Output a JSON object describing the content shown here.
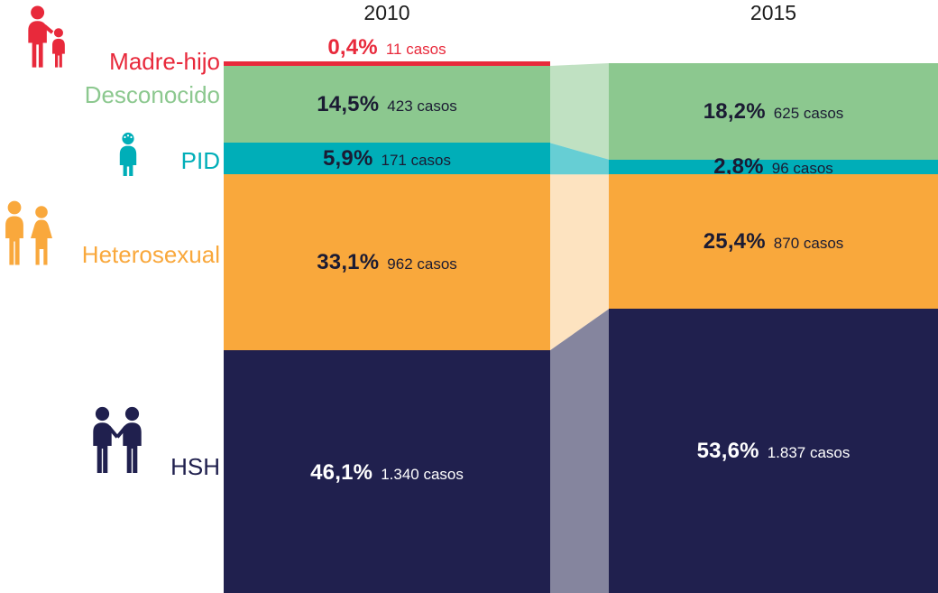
{
  "legend": {
    "items": [
      {
        "label": "Madre-hijo",
        "color": "#e8293b",
        "icon": "mother-child-icon"
      },
      {
        "label": "Desconocido",
        "color": "#8cc88f",
        "icon": null
      },
      {
        "label": "PID",
        "color": "#00aeb8",
        "icon": "injecting-drug-user-icon"
      },
      {
        "label": "Heterosexual",
        "color": "#f9a83c",
        "icon": "man-woman-couple-icon"
      },
      {
        "label": "HSH",
        "color": "#20204e",
        "icon": "two-men-couple-icon"
      }
    ]
  },
  "chart_data": {
    "type": "bar",
    "variant": "stacked-percentage-columns-with-flow-bands",
    "title": "",
    "unit_label": "casos",
    "legend_position": "left",
    "categories": [
      "Madre-hijo",
      "Desconocido",
      "PID",
      "Heterosexual",
      "HSH"
    ],
    "colors": {
      "Madre-hijo": "#e8293b",
      "Desconocido": "#8cc88f",
      "PID": "#00aeb8",
      "Heterosexual": "#f9a83c",
      "HSH": "#20204e"
    },
    "text_colors": {
      "on_light": "#1b1b33",
      "on_dark": "#ffffff"
    },
    "columns": [
      {
        "year": "2010",
        "segments": [
          {
            "category": "Madre-hijo",
            "percent": 0.4,
            "cases": 11,
            "percent_label": "0,4%",
            "cases_label": "11 casos"
          },
          {
            "category": "Desconocido",
            "percent": 14.5,
            "cases": 423,
            "percent_label": "14,5%",
            "cases_label": "423 casos"
          },
          {
            "category": "PID",
            "percent": 5.9,
            "cases": 171,
            "percent_label": "5,9%",
            "cases_label": "171 casos"
          },
          {
            "category": "Heterosexual",
            "percent": 33.1,
            "cases": 962,
            "percent_label": "33,1%",
            "cases_label": "962 casos"
          },
          {
            "category": "HSH",
            "percent": 46.1,
            "cases": 1340,
            "percent_label": "46,1%",
            "cases_label": "1.340 casos"
          }
        ]
      },
      {
        "year": "2015",
        "segments": [
          {
            "category": "Desconocido",
            "percent": 18.2,
            "cases": 625,
            "percent_label": "18,2%",
            "cases_label": "625 casos"
          },
          {
            "category": "PID",
            "percent": 2.8,
            "cases": 96,
            "percent_label": "2,8%",
            "cases_label": "96 casos"
          },
          {
            "category": "Heterosexual",
            "percent": 25.4,
            "cases": 870,
            "percent_label": "25,4%",
            "cases_label": "870 casos"
          },
          {
            "category": "HSH",
            "percent": 53.6,
            "cases": 1837,
            "percent_label": "53,6%",
            "cases_label": "1.837 casos"
          }
        ]
      }
    ]
  }
}
